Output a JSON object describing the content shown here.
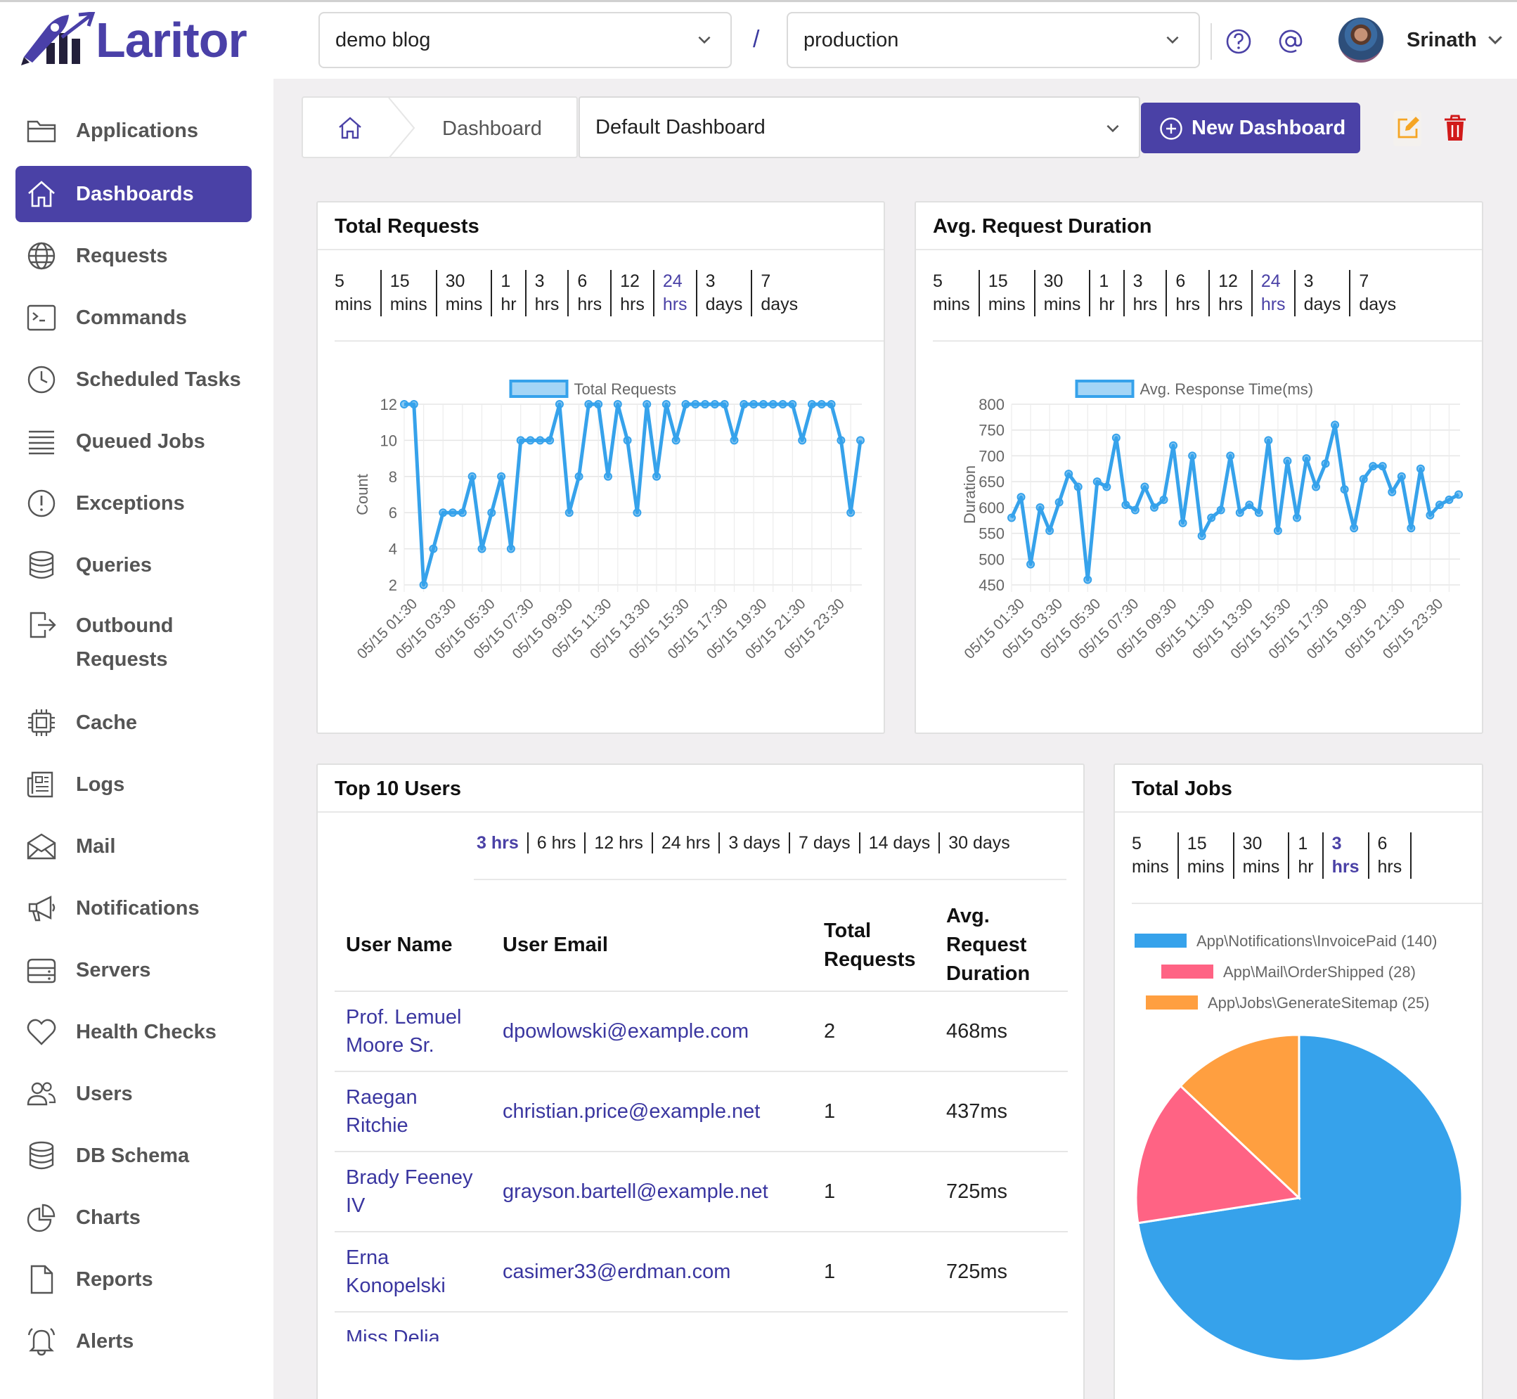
{
  "app": {
    "name": "Laritor"
  },
  "header": {
    "project": "demo blog",
    "separator": "/",
    "environment": "production",
    "user_name": "Srinath"
  },
  "sidebar": {
    "items": [
      {
        "label": "Applications",
        "icon": "folder-icon"
      },
      {
        "label": "Dashboards",
        "icon": "home-icon",
        "active": true
      },
      {
        "label": "Requests",
        "icon": "globe-icon"
      },
      {
        "label": "Commands",
        "icon": "terminal-icon"
      },
      {
        "label": "Scheduled Tasks",
        "icon": "clock-icon"
      },
      {
        "label": "Queued Jobs",
        "icon": "list-icon"
      },
      {
        "label": "Exceptions",
        "icon": "alert-circle-icon"
      },
      {
        "label": "Queries",
        "icon": "database-icon"
      },
      {
        "label": "Outbound",
        "label2": "Requests",
        "icon": "exit-icon"
      },
      {
        "label": "Cache",
        "icon": "chip-icon"
      },
      {
        "label": "Logs",
        "icon": "newspaper-icon"
      },
      {
        "label": "Mail",
        "icon": "envelope-icon"
      },
      {
        "label": "Notifications",
        "icon": "megaphone-icon"
      },
      {
        "label": "Servers",
        "icon": "server-icon"
      },
      {
        "label": "Health Checks",
        "icon": "heart-icon"
      },
      {
        "label": "Users",
        "icon": "users-icon"
      },
      {
        "label": "DB Schema",
        "icon": "database-icon"
      },
      {
        "label": "Charts",
        "icon": "pie-chart-icon"
      },
      {
        "label": "Reports",
        "icon": "file-icon"
      },
      {
        "label": "Alerts",
        "icon": "bell-icon"
      }
    ]
  },
  "toolbar": {
    "breadcrumb": "Dashboard",
    "dashboard_select": "Default Dashboard",
    "new_dashboard": "New Dashboard",
    "colors": {
      "accent": "#4a41a6",
      "edit": "#f5a524",
      "delete": "#d11a1a"
    }
  },
  "ranges9": [
    [
      "5",
      "mins"
    ],
    [
      "15",
      "mins"
    ],
    [
      "30",
      "mins"
    ],
    [
      "1",
      "hr"
    ],
    [
      "3",
      "hrs"
    ],
    [
      "6",
      "hrs"
    ],
    [
      "12",
      "hrs"
    ],
    [
      "24",
      "hrs"
    ],
    [
      "3",
      "days"
    ],
    [
      "7",
      "days"
    ]
  ],
  "cards": {
    "total_requests": {
      "title": "Total Requests",
      "active_range": "24 hrs"
    },
    "avg_duration": {
      "title": "Avg. Request Duration",
      "active_range": "24 hrs"
    },
    "top_users": {
      "title": "Top 10 Users",
      "ranges": [
        "3 hrs",
        "6 hrs",
        "12 hrs",
        "24 hrs",
        "3 days",
        "7 days",
        "14 days",
        "30 days"
      ],
      "active_range": "3 hrs",
      "columns": {
        "name": "User Name",
        "email": "User Email",
        "total": [
          "Total",
          "Requests"
        ],
        "avg": [
          "Avg.",
          "Request",
          "Duration"
        ]
      },
      "rows": [
        {
          "name": [
            "Prof. Lemuel",
            "Moore Sr."
          ],
          "email": "dpowlowski@example.com",
          "total": "2",
          "avg": "468ms"
        },
        {
          "name": [
            "Raegan",
            "Ritchie"
          ],
          "email": "christian.price@example.net",
          "total": "1",
          "avg": "437ms"
        },
        {
          "name": [
            "Brady Feeney",
            "IV"
          ],
          "email": "grayson.bartell@example.net",
          "total": "1",
          "avg": "725ms"
        },
        {
          "name": [
            "Erna",
            "Konopelski"
          ],
          "email": "casimer33@erdman.com",
          "total": "1",
          "avg": "725ms"
        },
        {
          "name": [
            "Miss Delia",
            ""
          ],
          "email": "",
          "total": "",
          "avg": ""
        }
      ]
    },
    "total_jobs": {
      "title": "Total Jobs",
      "ranges": [
        [
          "5",
          "mins"
        ],
        [
          "15",
          "mins"
        ],
        [
          "30",
          "mins"
        ],
        [
          "1",
          "hr"
        ],
        [
          "3",
          "hrs"
        ],
        [
          "6",
          "hrs"
        ]
      ],
      "active_range": "3 hrs"
    }
  },
  "chart_data": [
    {
      "type": "line",
      "legend": "Total Requests",
      "ylabel": "Count",
      "ylim": [
        2,
        12
      ],
      "yticks": [
        2,
        4,
        6,
        8,
        10,
        12
      ],
      "xticks": [
        "05/15 01:30",
        "05/15 03:30",
        "05/15 05:30",
        "05/15 07:30",
        "05/15 09:30",
        "05/15 11:30",
        "05/15 13:30",
        "05/15 15:30",
        "05/15 17:30",
        "05/15 19:30",
        "05/15 21:30",
        "05/15 23:30"
      ],
      "color": "#36a2eb",
      "values": [
        12,
        12,
        2,
        4,
        6,
        6,
        6,
        8,
        4,
        6,
        8,
        4,
        10,
        10,
        10,
        10,
        12,
        6,
        8,
        12,
        12,
        8,
        12,
        10,
        6,
        12,
        8,
        12,
        10,
        12,
        12,
        12,
        12,
        12,
        10,
        12,
        12,
        12,
        12,
        12,
        12,
        10,
        12,
        12,
        12,
        10,
        6,
        10
      ]
    },
    {
      "type": "line",
      "legend": "Avg. Response Time(ms)",
      "ylabel": "Duration",
      "ylim": [
        450,
        800
      ],
      "yticks": [
        450,
        500,
        550,
        600,
        650,
        700,
        750,
        800
      ],
      "xticks": [
        "05/15 01:30",
        "05/15 03:30",
        "05/15 05:30",
        "05/15 07:30",
        "05/15 09:30",
        "05/15 11:30",
        "05/15 13:30",
        "05/15 15:30",
        "05/15 17:30",
        "05/15 19:30",
        "05/15 21:30",
        "05/15 23:30"
      ],
      "color": "#36a2eb",
      "values": [
        580,
        620,
        490,
        600,
        555,
        610,
        665,
        640,
        460,
        650,
        640,
        735,
        605,
        595,
        640,
        600,
        615,
        720,
        570,
        700,
        545,
        580,
        595,
        700,
        590,
        605,
        590,
        730,
        555,
        690,
        580,
        695,
        640,
        685,
        760,
        635,
        560,
        655,
        680,
        680,
        630,
        660,
        560,
        675,
        585,
        605,
        615,
        625
      ]
    },
    {
      "type": "pie",
      "legend": [
        "App\\Notifications\\InvoicePaid (140)",
        "App\\Mail\\OrderShipped (28)",
        "App\\Jobs\\GenerateSitemap (25)"
      ],
      "values": [
        140,
        28,
        25
      ],
      "colors": [
        "#36a2eb",
        "#ff6384",
        "#ff9f40"
      ]
    }
  ]
}
